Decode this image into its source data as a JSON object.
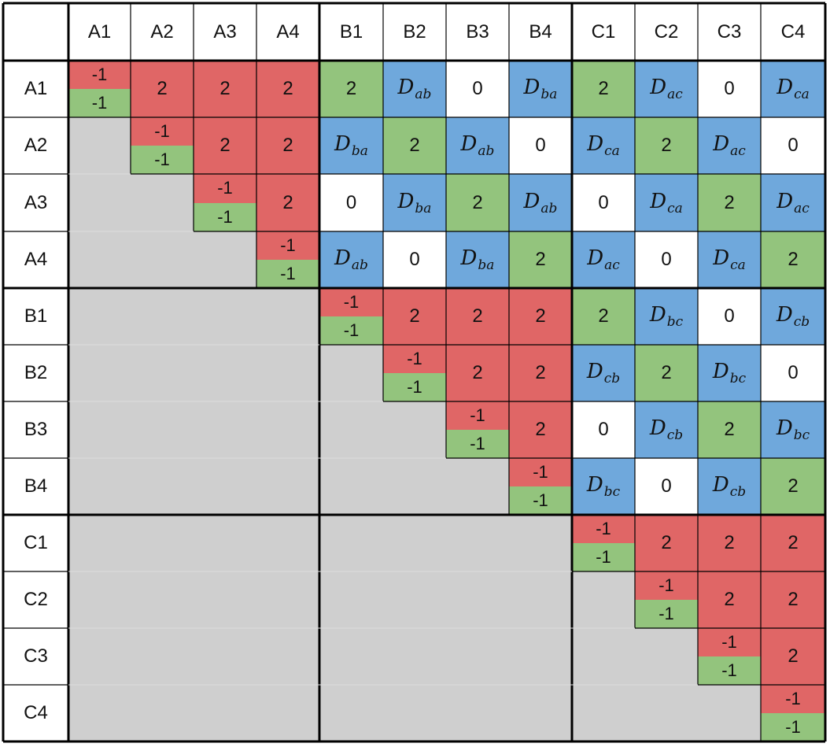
{
  "column_headers": [
    "A1",
    "A2",
    "A3",
    "A4",
    "B1",
    "B2",
    "B3",
    "B4",
    "C1",
    "C2",
    "C3",
    "C4"
  ],
  "row_headers": [
    "A1",
    "A2",
    "A3",
    "A4",
    "B1",
    "B2",
    "B3",
    "B4",
    "C1",
    "C2",
    "C3",
    "C4"
  ],
  "diagonal": {
    "top": "-1",
    "bottom": "-1"
  },
  "rows": [
    [
      {
        "t": "diag"
      },
      {
        "t": "red",
        "v": "2"
      },
      {
        "t": "red",
        "v": "2"
      },
      {
        "t": "red",
        "v": "2"
      },
      {
        "t": "green",
        "v": "2"
      },
      {
        "t": "blue",
        "m": "D",
        "s": "ab"
      },
      {
        "t": "white",
        "v": "0"
      },
      {
        "t": "blue",
        "m": "D",
        "s": "ba"
      },
      {
        "t": "green",
        "v": "2"
      },
      {
        "t": "blue",
        "m": "D",
        "s": "ac"
      },
      {
        "t": "white",
        "v": "0"
      },
      {
        "t": "blue",
        "m": "D",
        "s": "ca"
      }
    ],
    [
      {
        "t": "gray"
      },
      {
        "t": "diag"
      },
      {
        "t": "red",
        "v": "2"
      },
      {
        "t": "red",
        "v": "2"
      },
      {
        "t": "blue",
        "m": "D",
        "s": "ba"
      },
      {
        "t": "green",
        "v": "2"
      },
      {
        "t": "blue",
        "m": "D",
        "s": "ab"
      },
      {
        "t": "white",
        "v": "0"
      },
      {
        "t": "blue",
        "m": "D",
        "s": "ca"
      },
      {
        "t": "green",
        "v": "2"
      },
      {
        "t": "blue",
        "m": "D",
        "s": "ac"
      },
      {
        "t": "white",
        "v": "0"
      }
    ],
    [
      {
        "t": "gray"
      },
      {
        "t": "gray"
      },
      {
        "t": "diag"
      },
      {
        "t": "red",
        "v": "2"
      },
      {
        "t": "white",
        "v": "0"
      },
      {
        "t": "blue",
        "m": "D",
        "s": "ba"
      },
      {
        "t": "green",
        "v": "2"
      },
      {
        "t": "blue",
        "m": "D",
        "s": "ab"
      },
      {
        "t": "white",
        "v": "0"
      },
      {
        "t": "blue",
        "m": "D",
        "s": "ca"
      },
      {
        "t": "green",
        "v": "2"
      },
      {
        "t": "blue",
        "m": "D",
        "s": "ac"
      }
    ],
    [
      {
        "t": "gray"
      },
      {
        "t": "gray"
      },
      {
        "t": "gray"
      },
      {
        "t": "diag"
      },
      {
        "t": "blue",
        "m": "D",
        "s": "ab"
      },
      {
        "t": "white",
        "v": "0"
      },
      {
        "t": "blue",
        "m": "D",
        "s": "ba"
      },
      {
        "t": "green",
        "v": "2"
      },
      {
        "t": "blue",
        "m": "D",
        "s": "ac"
      },
      {
        "t": "white",
        "v": "0"
      },
      {
        "t": "blue",
        "m": "D",
        "s": "ca"
      },
      {
        "t": "green",
        "v": "2"
      }
    ],
    [
      {
        "t": "gray"
      },
      {
        "t": "gray"
      },
      {
        "t": "gray"
      },
      {
        "t": "gray"
      },
      {
        "t": "diag"
      },
      {
        "t": "red",
        "v": "2"
      },
      {
        "t": "red",
        "v": "2"
      },
      {
        "t": "red",
        "v": "2"
      },
      {
        "t": "green",
        "v": "2"
      },
      {
        "t": "blue",
        "m": "D",
        "s": "bc"
      },
      {
        "t": "white",
        "v": "0"
      },
      {
        "t": "blue",
        "m": "D",
        "s": "cb"
      }
    ],
    [
      {
        "t": "gray"
      },
      {
        "t": "gray"
      },
      {
        "t": "gray"
      },
      {
        "t": "gray"
      },
      {
        "t": "gray"
      },
      {
        "t": "diag"
      },
      {
        "t": "red",
        "v": "2"
      },
      {
        "t": "red",
        "v": "2"
      },
      {
        "t": "blue",
        "m": "D",
        "s": "cb"
      },
      {
        "t": "green",
        "v": "2"
      },
      {
        "t": "blue",
        "m": "D",
        "s": "bc"
      },
      {
        "t": "white",
        "v": "0"
      }
    ],
    [
      {
        "t": "gray"
      },
      {
        "t": "gray"
      },
      {
        "t": "gray"
      },
      {
        "t": "gray"
      },
      {
        "t": "gray"
      },
      {
        "t": "gray"
      },
      {
        "t": "diag"
      },
      {
        "t": "red",
        "v": "2"
      },
      {
        "t": "white",
        "v": "0"
      },
      {
        "t": "blue",
        "m": "D",
        "s": "cb"
      },
      {
        "t": "green",
        "v": "2"
      },
      {
        "t": "blue",
        "m": "D",
        "s": "bc"
      }
    ],
    [
      {
        "t": "gray"
      },
      {
        "t": "gray"
      },
      {
        "t": "gray"
      },
      {
        "t": "gray"
      },
      {
        "t": "gray"
      },
      {
        "t": "gray"
      },
      {
        "t": "gray"
      },
      {
        "t": "diag"
      },
      {
        "t": "blue",
        "m": "D",
        "s": "bc"
      },
      {
        "t": "white",
        "v": "0"
      },
      {
        "t": "blue",
        "m": "D",
        "s": "cb"
      },
      {
        "t": "green",
        "v": "2"
      }
    ],
    [
      {
        "t": "gray"
      },
      {
        "t": "gray"
      },
      {
        "t": "gray"
      },
      {
        "t": "gray"
      },
      {
        "t": "gray"
      },
      {
        "t": "gray"
      },
      {
        "t": "gray"
      },
      {
        "t": "gray"
      },
      {
        "t": "diag"
      },
      {
        "t": "red",
        "v": "2"
      },
      {
        "t": "red",
        "v": "2"
      },
      {
        "t": "red",
        "v": "2"
      }
    ],
    [
      {
        "t": "gray"
      },
      {
        "t": "gray"
      },
      {
        "t": "gray"
      },
      {
        "t": "gray"
      },
      {
        "t": "gray"
      },
      {
        "t": "gray"
      },
      {
        "t": "gray"
      },
      {
        "t": "gray"
      },
      {
        "t": "gray"
      },
      {
        "t": "diag"
      },
      {
        "t": "red",
        "v": "2"
      },
      {
        "t": "red",
        "v": "2"
      }
    ],
    [
      {
        "t": "gray"
      },
      {
        "t": "gray"
      },
      {
        "t": "gray"
      },
      {
        "t": "gray"
      },
      {
        "t": "gray"
      },
      {
        "t": "gray"
      },
      {
        "t": "gray"
      },
      {
        "t": "gray"
      },
      {
        "t": "gray"
      },
      {
        "t": "gray"
      },
      {
        "t": "diag"
      },
      {
        "t": "red",
        "v": "2"
      }
    ],
    [
      {
        "t": "gray"
      },
      {
        "t": "gray"
      },
      {
        "t": "gray"
      },
      {
        "t": "gray"
      },
      {
        "t": "gray"
      },
      {
        "t": "gray"
      },
      {
        "t": "gray"
      },
      {
        "t": "gray"
      },
      {
        "t": "gray"
      },
      {
        "t": "gray"
      },
      {
        "t": "gray"
      },
      {
        "t": "diag"
      }
    ]
  ],
  "colors": {
    "red": "#e06666",
    "green": "#93c47d",
    "blue": "#6fa8dc",
    "gray": "#cfcfcf",
    "white": "#ffffff"
  }
}
